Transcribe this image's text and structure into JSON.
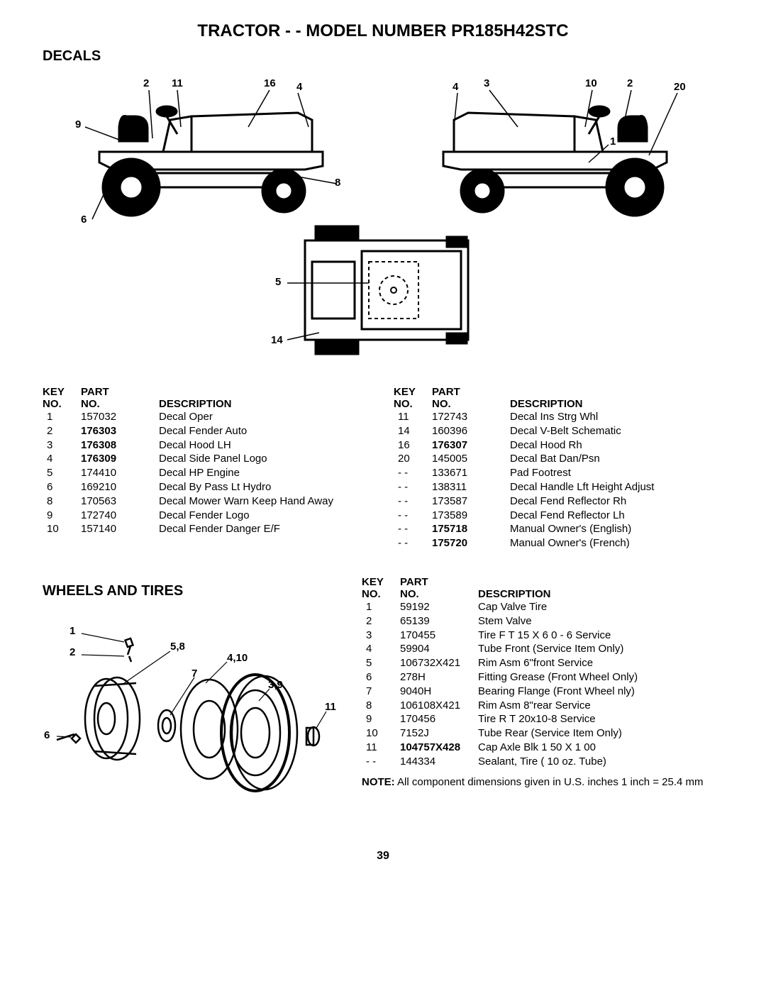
{
  "page_title": "TRACTOR - - MODEL NUMBER PR185H42STC",
  "section_decals": "DECALS",
  "section_wheels": "WHEELS AND TIRES",
  "headers": {
    "key": "KEY",
    "no": "NO.",
    "part": "PART",
    "desc": "DESCRIPTION"
  },
  "decals_left": [
    {
      "key": "1",
      "part": "157032",
      "desc": "Decal Oper",
      "bold": false
    },
    {
      "key": "2",
      "part": "176303",
      "desc": "Decal Fender Auto",
      "bold": true
    },
    {
      "key": "3",
      "part": "176308",
      "desc": "Decal Hood LH",
      "bold": true
    },
    {
      "key": "4",
      "part": "176309",
      "desc": "Decal Side Panel Logo",
      "bold": true
    },
    {
      "key": "5",
      "part": "174410",
      "desc": "Decal HP Engine",
      "bold": false
    },
    {
      "key": "6",
      "part": "169210",
      "desc": "Decal By Pass Lt Hydro",
      "bold": false
    },
    {
      "key": "8",
      "part": "170563",
      "desc": "Decal Mower Warn Keep Hand Away",
      "bold": false
    },
    {
      "key": "9",
      "part": "172740",
      "desc": "Decal Fender Logo",
      "bold": false
    },
    {
      "key": "10",
      "part": "157140",
      "desc": "Decal Fender Danger E/F",
      "bold": false
    }
  ],
  "decals_right": [
    {
      "key": "11",
      "part": "172743",
      "desc": "Decal Ins Strg Whl",
      "bold": false
    },
    {
      "key": "14",
      "part": "160396",
      "desc": "Decal V-Belt  Schematic",
      "bold": false
    },
    {
      "key": "16",
      "part": "176307",
      "desc": "Decal Hood Rh",
      "bold": true
    },
    {
      "key": "20",
      "part": "145005",
      "desc": "Decal Bat Dan/Psn",
      "bold": false
    },
    {
      "key": "- -",
      "part": "133671",
      "desc": "Pad Footrest",
      "bold": false
    },
    {
      "key": "- -",
      "part": "138311",
      "desc": "Decal Handle Lft Height Adjust",
      "bold": false
    },
    {
      "key": "- -",
      "part": "173587",
      "desc": "Decal Fend Reflector Rh",
      "bold": false
    },
    {
      "key": "- -",
      "part": "173589",
      "desc": "Decal Fend Reflector Lh",
      "bold": false
    },
    {
      "key": "- -",
      "part": "175718",
      "desc": "Manual Owner's (English)",
      "bold": true
    },
    {
      "key": "- -",
      "part": "175720",
      "desc": "Manual Owner's (French)",
      "bold": true
    }
  ],
  "wheels_rows": [
    {
      "key": "1",
      "part": "59192",
      "desc": "Cap Valve Tire",
      "bold": false
    },
    {
      "key": "2",
      "part": "65139",
      "desc": "Stem Valve",
      "bold": false
    },
    {
      "key": "3",
      "part": "170455",
      "desc": "Tire F T 15 X 6 0 - 6 Service",
      "bold": false
    },
    {
      "key": "4",
      "part": "59904",
      "desc": "Tube Front (Service Item Only)",
      "bold": false
    },
    {
      "key": "5",
      "part": "106732X421",
      "desc": "Rim Asm 6\"front Service",
      "bold": false
    },
    {
      "key": "6",
      "part": "278H",
      "desc": "Fitting Grease (Front Wheel Only)",
      "bold": false
    },
    {
      "key": "7",
      "part": "9040H",
      "desc": "Bearing Flange (Front Wheel nly)",
      "bold": false
    },
    {
      "key": "8",
      "part": "106108X421",
      "desc": "Rim Asm 8\"rear Service",
      "bold": false
    },
    {
      "key": "9",
      "part": "170456",
      "desc": "Tire R T 20x10-8 Service",
      "bold": false
    },
    {
      "key": "10",
      "part": "7152J",
      "desc": "Tube Rear (Service Item Only)",
      "bold": false
    },
    {
      "key": "11",
      "part": "104757X428",
      "desc": "Cap Axle Blk 1 50 X 1 00",
      "bold": true
    },
    {
      "key": "- -",
      "part": "144334",
      "desc": "Sealant, Tire ( 10 oz. Tube)",
      "bold": false
    }
  ],
  "note_label": "NOTE:",
  "note_text": "All component dimensions given in U.S. inches 1 inch = 25.4 mm",
  "page_number": "39",
  "callouts_left_tractor": {
    "c2": "2",
    "c11": "11",
    "c16": "16",
    "c4": "4",
    "c9": "9",
    "c6": "6",
    "c8": "8"
  },
  "callouts_right_tractor": {
    "c4": "4",
    "c3": "3",
    "c10": "10",
    "c2": "2",
    "c20": "20",
    "c1": "1"
  },
  "callouts_top_tractor": {
    "c5": "5",
    "c14": "14"
  },
  "callouts_wheels": {
    "c1": "1",
    "c2": "2",
    "c58": "5,8",
    "c410": "4,10",
    "c7": "7",
    "c39": "3,9",
    "c6": "6",
    "c11": "11"
  }
}
